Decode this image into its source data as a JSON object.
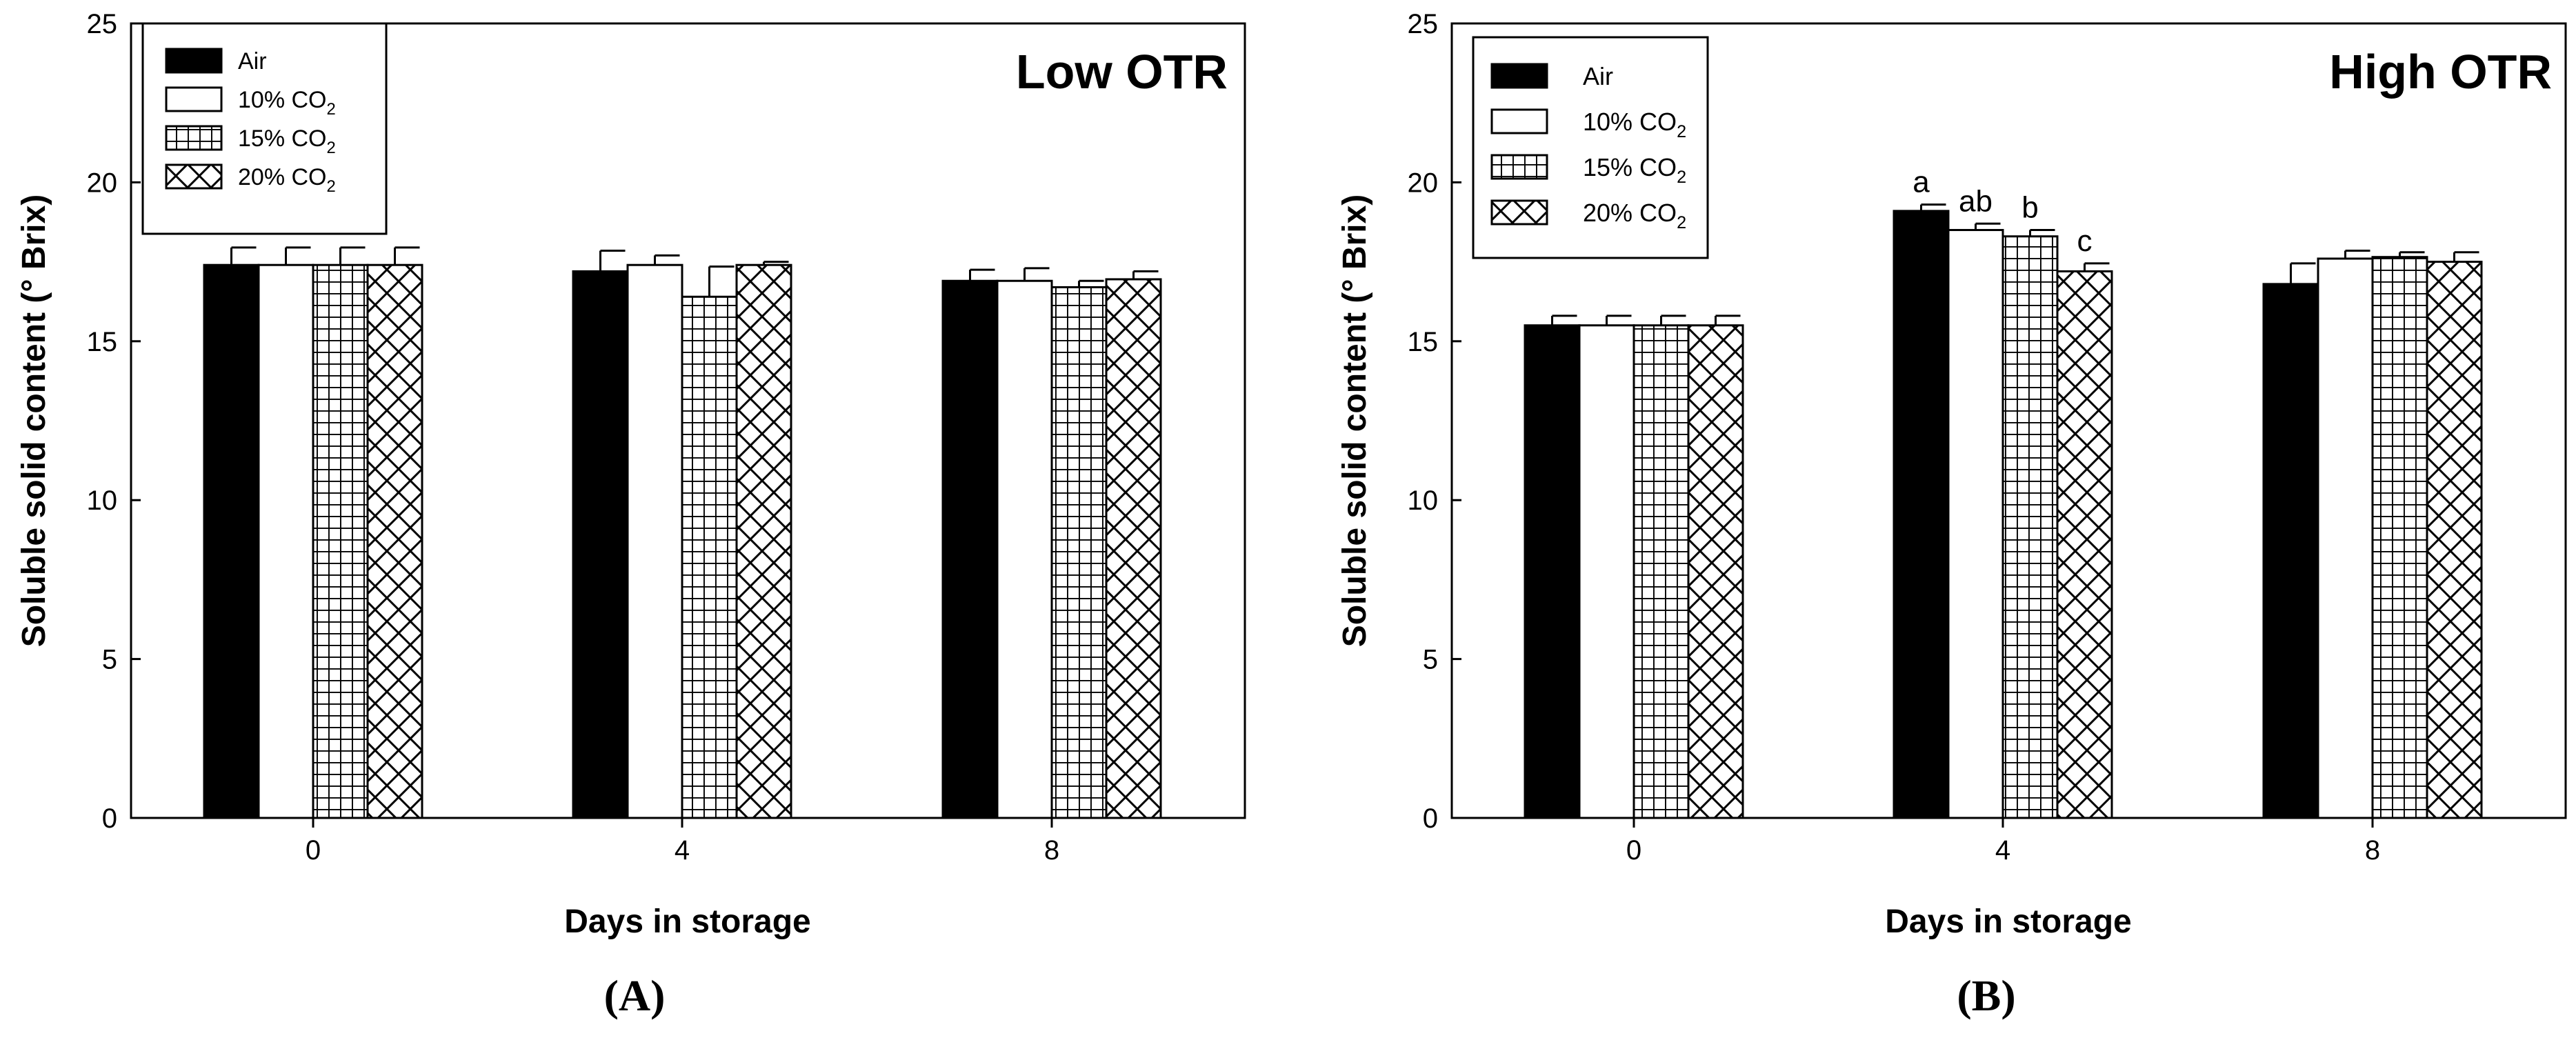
{
  "figure": {
    "panels_label": [
      "(A)",
      "(B)"
    ]
  },
  "chart_data": [
    {
      "type": "bar",
      "panel_label": "(A)",
      "title": "Low OTR",
      "xlabel": "Days in storage",
      "ylabel_main": "Soluble solid content (° B",
      "ylabel_rest": "rix)",
      "ylim": [
        0,
        25
      ],
      "yticks": [
        "0",
        "5",
        "10",
        "15",
        "20",
        "25"
      ],
      "categories": [
        "0",
        "4",
        "8"
      ],
      "series": [
        {
          "name": "Air",
          "name_main": "Air",
          "name_sub": "",
          "pattern": "solid",
          "values": [
            17.4,
            17.2,
            16.9
          ],
          "errors": [
            0.55,
            0.65,
            0.35
          ],
          "letters": [
            "",
            "",
            ""
          ]
        },
        {
          "name": "10% CO2",
          "name_main": "10% CO",
          "name_sub": "2",
          "pattern": "white",
          "values": [
            17.4,
            17.4,
            16.9
          ],
          "errors": [
            0.55,
            0.3,
            0.4
          ],
          "letters": [
            "",
            "",
            ""
          ]
        },
        {
          "name": "15% CO2",
          "name_main": "15% CO",
          "name_sub": "2",
          "pattern": "grid",
          "values": [
            17.4,
            16.4,
            16.7
          ],
          "errors": [
            0.55,
            0.95,
            0.2
          ],
          "letters": [
            "",
            "",
            ""
          ]
        },
        {
          "name": "20% CO2",
          "name_main": "20% CO",
          "name_sub": "2",
          "pattern": "cross",
          "values": [
            17.4,
            17.4,
            16.95
          ],
          "errors": [
            0.55,
            0.1,
            0.25
          ],
          "letters": [
            "",
            "",
            ""
          ]
        }
      ]
    },
    {
      "type": "bar",
      "panel_label": "(B)",
      "title": "High OTR",
      "xlabel": "Days in storage",
      "ylabel_main": "Soluble solid content (° B",
      "ylabel_rest": "rix)",
      "ylim": [
        0,
        25
      ],
      "yticks": [
        "0",
        "5",
        "10",
        "15",
        "20",
        "25"
      ],
      "categories": [
        "0",
        "4",
        "8"
      ],
      "series": [
        {
          "name": "Air",
          "name_main": "Air",
          "name_sub": "",
          "pattern": "solid",
          "values": [
            15.5,
            19.1,
            16.8
          ],
          "errors": [
            0.3,
            0.2,
            0.65
          ],
          "letters": [
            "",
            "a",
            ""
          ]
        },
        {
          "name": "10% CO2",
          "name_main": "10% CO",
          "name_sub": "2",
          "pattern": "white",
          "values": [
            15.5,
            18.5,
            17.6
          ],
          "errors": [
            0.3,
            0.2,
            0.25
          ],
          "letters": [
            "",
            "ab",
            ""
          ]
        },
        {
          "name": "15% CO2",
          "name_main": "15% CO",
          "name_sub": "2",
          "pattern": "grid",
          "values": [
            15.5,
            18.3,
            17.65
          ],
          "errors": [
            0.3,
            0.2,
            0.15
          ],
          "letters": [
            "",
            "b",
            ""
          ]
        },
        {
          "name": "20% CO2",
          "name_main": "20% CO",
          "name_sub": "2",
          "pattern": "cross",
          "values": [
            15.5,
            17.2,
            17.5
          ],
          "errors": [
            0.3,
            0.25,
            0.3
          ],
          "letters": [
            "",
            "c",
            ""
          ]
        }
      ]
    }
  ]
}
